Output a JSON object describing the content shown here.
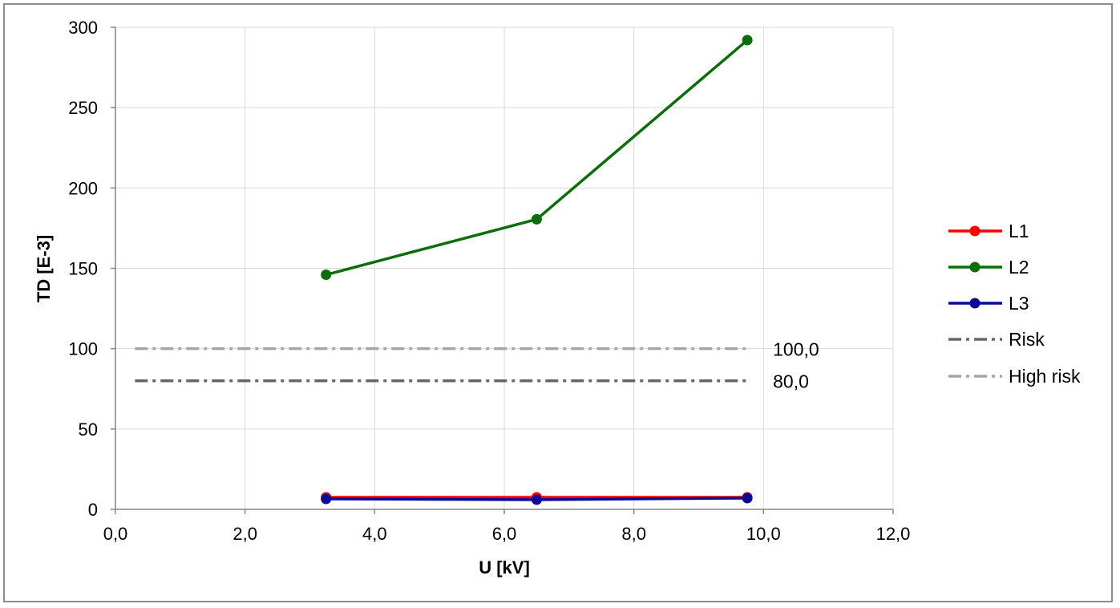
{
  "chart_data": {
    "type": "line",
    "title": "",
    "xlabel": "U [kV]",
    "ylabel": "TD [E-3]",
    "xlim": [
      0,
      12
    ],
    "ylim": [
      0,
      300
    ],
    "x_ticks": [
      "0,0",
      "2,0",
      "4,0",
      "6,0",
      "8,0",
      "10,0",
      "12,0"
    ],
    "x_tick_values": [
      0,
      2,
      4,
      6,
      8,
      10,
      12
    ],
    "y_ticks": [
      "0",
      "50",
      "100",
      "150",
      "200",
      "250",
      "300"
    ],
    "y_tick_values": [
      0,
      50,
      100,
      150,
      200,
      250,
      300
    ],
    "grid": true,
    "legend_position": "right",
    "series": [
      {
        "name": "L1",
        "color": "#ff0000",
        "style": "solid-marker",
        "x": [
          3.25,
          6.5,
          9.75
        ],
        "y": [
          7.5,
          7.5,
          7.5
        ]
      },
      {
        "name": "L2",
        "color": "#0b6e0b",
        "style": "solid-marker",
        "x": [
          3.25,
          6.5,
          9.75
        ],
        "y": [
          146,
          180.5,
          292
        ]
      },
      {
        "name": "L3",
        "color": "#0a0a96",
        "style": "solid-marker",
        "x": [
          3.25,
          6.5,
          9.75
        ],
        "y": [
          6.5,
          6,
          7
        ]
      },
      {
        "name": "Risk",
        "color": "#666666",
        "style": "dash-dot",
        "x": [
          0.3,
          9.75
        ],
        "y": [
          80,
          80
        ],
        "label": "80,0"
      },
      {
        "name": "High risk",
        "color": "#a6a6a6",
        "style": "dash-dot",
        "x": [
          0.3,
          9.75
        ],
        "y": [
          100,
          100
        ],
        "label": "100,0"
      }
    ]
  }
}
